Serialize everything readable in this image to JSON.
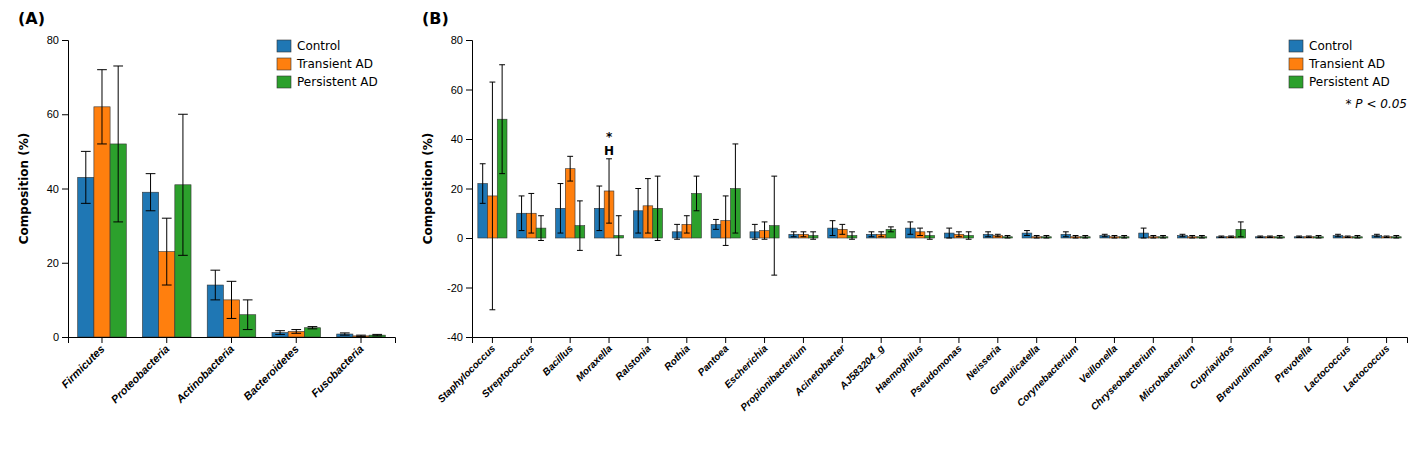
{
  "chart_data": [
    {
      "type": "bar",
      "title": "(A)",
      "y_label": "Composition (%)",
      "categories": [
        "Firmicutes",
        "Proteobacteria",
        "Actinobacteria",
        "Bacteroidetes",
        "Fusobacteria"
      ],
      "series": [
        {
          "name": "Control",
          "values": [
            43,
            39,
            14,
            1.2,
            0.8
          ],
          "errors": [
            7,
            5,
            4,
            0.5,
            0.3
          ]
        },
        {
          "name": "Transient AD",
          "values": [
            62,
            23,
            10,
            1.5,
            0.3
          ],
          "errors": [
            10,
            9,
            5,
            0.5,
            0.2
          ]
        },
        {
          "name": "Persistent AD",
          "values": [
            52,
            41,
            6,
            2.5,
            0.5
          ],
          "errors": [
            21,
            19,
            4,
            0.3,
            0.2
          ]
        }
      ],
      "ylim": [
        0,
        80
      ],
      "yticks": [
        0,
        20,
        40,
        60,
        80
      ],
      "grid": false,
      "legend": "upper right"
    },
    {
      "type": "bar",
      "title": "(B)",
      "y_label": "Composition (%)",
      "categories": [
        "Staphylococcus",
        "Streptococcus",
        "Bacillus",
        "Moraxella",
        "Ralstonia",
        "Rothia",
        "Pantoea",
        "Escherichia",
        "Propionibacterium",
        "Acinetobacter",
        "AJ583204_g",
        "Haemophilus",
        "Pseudomonas",
        "Neisseria",
        "Granulicatella",
        "Corynebacterium",
        "Veillonella",
        "Chryseobacterium",
        "Microbacterium",
        "Cupriavidos",
        "Brevundimonas",
        "Prevotella",
        "Lactococcus",
        "Lactococcus "
      ],
      "series": [
        {
          "name": "Control",
          "values": [
            22,
            10,
            12,
            12,
            11,
            2.5,
            5.5,
            2.5,
            1.5,
            4,
            1.5,
            4,
            2,
            1.5,
            2,
            1.5,
            1,
            2,
            1,
            0.5,
            0.5,
            0.5,
            1,
            1
          ],
          "errors": [
            8,
            7,
            10,
            9,
            9,
            3,
            2,
            3,
            1,
            3,
            1,
            2.5,
            2,
            1,
            1,
            1,
            0.5,
            2,
            0.5,
            0.3,
            0.3,
            0.3,
            0.5,
            0.5
          ]
        },
        {
          "name": "Transient AD",
          "values": [
            17,
            10,
            28,
            19,
            13,
            5.5,
            7,
            3,
            1.5,
            3.5,
            1.5,
            2.5,
            1.5,
            1,
            0.5,
            0.5,
            0.5,
            0.5,
            0.5,
            0.5,
            0.5,
            0.5,
            0.5,
            0.5
          ],
          "errors": [
            46,
            8,
            5,
            13,
            11,
            3.5,
            10,
            3.5,
            1,
            2,
            1,
            1.5,
            1,
            0.5,
            0.5,
            0.5,
            0.5,
            0.5,
            0.5,
            0.3,
            0.3,
            0.3,
            0.3,
            0.3
          ]
        },
        {
          "name": "Persistent AD",
          "values": [
            48,
            4,
            5,
            1,
            12,
            18,
            20,
            5,
            1,
            1,
            3.5,
            1,
            1,
            0.5,
            0.5,
            0.5,
            0.5,
            0.5,
            0.5,
            3.5,
            0.5,
            0.5,
            0.5,
            0.5
          ],
          "errors": [
            22,
            5,
            10,
            8,
            13,
            7,
            18,
            20,
            1.5,
            1.5,
            1,
            1.5,
            1.5,
            0.5,
            0.5,
            0.5,
            0.5,
            0.5,
            0.5,
            3,
            0.5,
            0.5,
            0.5,
            0.5
          ]
        }
      ],
      "ylim": [
        -40,
        80
      ],
      "yticks": [
        -40,
        -20,
        0,
        20,
        40,
        60,
        80
      ],
      "grid": false,
      "legend": "upper right",
      "annotations": [
        {
          "text": "*",
          "x": "Moraxella"
        },
        {
          "text": "H",
          "x": "Moraxella"
        },
        {
          "text": "* P < 0.05"
        }
      ]
    }
  ]
}
